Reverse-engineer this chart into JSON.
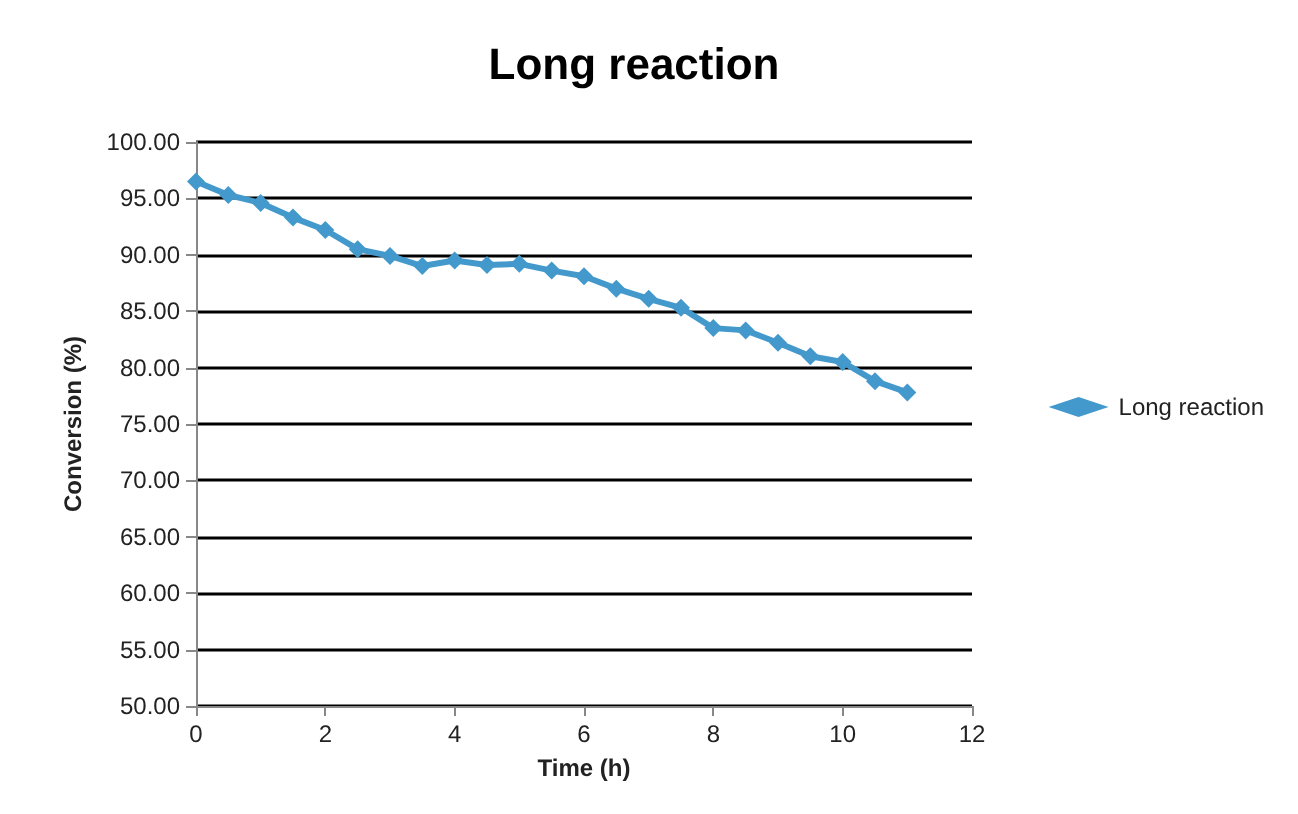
{
  "chart_data": {
    "type": "line",
    "title": "Long reaction",
    "xlabel": "Time (h)",
    "ylabel": "Conversion (%)",
    "x": [
      0,
      0.5,
      1,
      1.5,
      2,
      2.5,
      3,
      3.5,
      4,
      4.5,
      5,
      5.5,
      6,
      6.5,
      7,
      7.5,
      8,
      8.5,
      9,
      9.5,
      10,
      10.5,
      11
    ],
    "series": [
      {
        "name": "Long reaction",
        "color": "#4499cc",
        "values": [
          96.5,
          95.3,
          94.6,
          93.3,
          92.2,
          90.5,
          89.9,
          89.0,
          89.5,
          89.1,
          89.2,
          88.6,
          88.1,
          87.0,
          86.1,
          85.3,
          83.5,
          83.3,
          82.2,
          81.0,
          80.5,
          78.8,
          77.8
        ]
      }
    ],
    "xlim": [
      0,
      12
    ],
    "xticks": [
      0,
      2,
      4,
      6,
      8,
      10,
      12
    ],
    "ylim": [
      50,
      100
    ],
    "yticks": [
      {
        "value": 50,
        "label": "50.00"
      },
      {
        "value": 55,
        "label": "55.00"
      },
      {
        "value": 60,
        "label": "60.00"
      },
      {
        "value": 65,
        "label": "65.00"
      },
      {
        "value": 70,
        "label": "70.00"
      },
      {
        "value": 75,
        "label": "75.00"
      },
      {
        "value": 80,
        "label": "80.00"
      },
      {
        "value": 85,
        "label": "85.00"
      },
      {
        "value": 90,
        "label": "90.00"
      },
      {
        "value": 95,
        "label": "95.00"
      },
      {
        "value": 100,
        "label": "100.00"
      }
    ],
    "grid": "y",
    "legend": "right",
    "marker": "diamond",
    "line_style": "solid"
  }
}
